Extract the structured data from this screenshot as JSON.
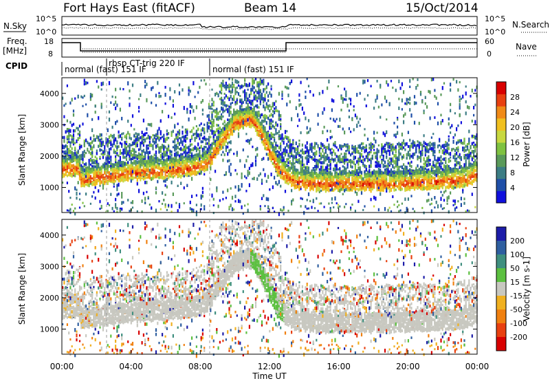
{
  "header": {
    "station": "Fort Hays East (fitACF)",
    "beam": "Beam 14",
    "date": "15/Oct/2014"
  },
  "side_labels": {
    "nsky": "N.Sky",
    "freq_top": "Freq.",
    "freq_unit": "[MHz]",
    "cpid": "CPID",
    "nsearch": "N.Search",
    "nave": "Nave"
  },
  "noise_axis": {
    "left_ticks": [
      "10^5",
      "10^0"
    ],
    "right_ticks": [
      "10^5",
      "10^0"
    ]
  },
  "freq_axis": {
    "left_ticks": [
      "18",
      "8"
    ],
    "right_ticks": [
      "60",
      "0"
    ]
  },
  "cpid_segments": [
    {
      "label": "normal (fast) 151 IF",
      "start_h": 0,
      "end_h": 2.6
    },
    {
      "label": "rbsp CT-trig 220 IF",
      "start_h": 2.6,
      "end_h": 8.6
    },
    {
      "label": "normal (fast) 151 IF",
      "start_h": 8.6,
      "end_h": 24
    }
  ],
  "time_axis": {
    "title": "Time UT",
    "ticks": [
      "00:00",
      "04:00",
      "08:00",
      "12:00",
      "16:00",
      "20:00",
      "00:00"
    ]
  },
  "power_panel": {
    "ylabel": "Slant Range [km]",
    "cbar_label": "Power [dB]"
  },
  "velocity_panel": {
    "ylabel": "Slant Range [km]",
    "cbar_label": "Velocity [m s-1]"
  },
  "chart_data": {
    "type": "heatmap",
    "x_range_hours": [
      0,
      24
    ],
    "y_range_km": [
      200,
      4500
    ],
    "y_ticks": [
      "1000",
      "2000",
      "3000",
      "4000"
    ],
    "y_tick_values": [
      1000,
      2000,
      3000,
      4000
    ],
    "power_scale": {
      "ticks": [
        "28",
        "24",
        "20",
        "16",
        "12",
        "8",
        "4"
      ],
      "tick_values": [
        28,
        24,
        20,
        16,
        12,
        8,
        4
      ],
      "range": [
        0,
        32
      ],
      "colors": [
        "#1010dd",
        "#1f4fa8",
        "#3c7d84",
        "#5a9a5a",
        "#7fc241",
        "#c8d840",
        "#f0c020",
        "#f08a18",
        "#e84010",
        "#d80000"
      ]
    },
    "velocity_scale": {
      "ticks": [
        "200",
        "100",
        "50",
        "15",
        "-15",
        "-50",
        "-100",
        "-200"
      ],
      "tick_values": [
        200,
        100,
        50,
        15,
        -15,
        -50,
        -100,
        -200
      ],
      "colors": [
        "#1c1ca8",
        "#2f5fa0",
        "#3f8f7f",
        "#5cc040",
        "#c8c8c0",
        "#f0b020",
        "#f08010",
        "#e84010",
        "#d80000"
      ]
    },
    "backscatter_band": {
      "time_h": [
        0,
        0.9,
        1.1,
        2,
        4,
        6,
        7.5,
        8.4,
        9.2,
        10,
        11,
        11.7,
        12.4,
        13,
        13.5,
        15,
        17,
        19,
        21,
        23,
        24
      ],
      "center_km": [
        1600,
        1650,
        1250,
        1350,
        1500,
        1550,
        1650,
        1800,
        2500,
        3100,
        3200,
        2500,
        1700,
        1350,
        1200,
        1150,
        1150,
        1150,
        1200,
        1250,
        1450
      ]
    }
  }
}
